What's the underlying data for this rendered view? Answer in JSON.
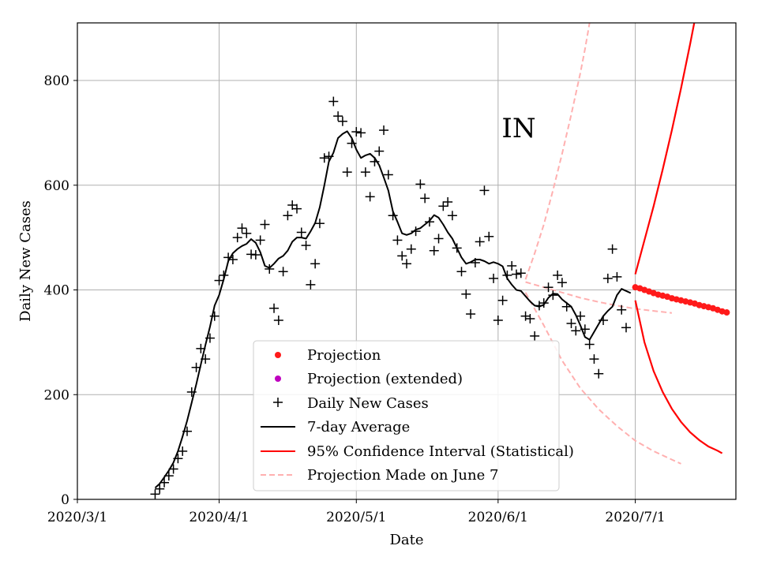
{
  "chart_data": {
    "type": "line",
    "region": "IN",
    "xlabel": "Date",
    "ylabel": "Daily New Cases",
    "ylim": [
      0,
      910
    ],
    "xlim_days": [
      0,
      144
    ],
    "grid": true,
    "legend_position": "lower-center",
    "x_ticks": [
      {
        "day": 0,
        "label": "2020/3/1"
      },
      {
        "day": 31,
        "label": "2020/4/1"
      },
      {
        "day": 61,
        "label": "2020/5/1"
      },
      {
        "day": 92,
        "label": "2020/6/1"
      },
      {
        "day": 122,
        "label": "2020/7/1"
      }
    ],
    "y_ticks": [
      {
        "value": 0,
        "label": "0"
      },
      {
        "value": 200,
        "label": "200"
      },
      {
        "value": 400,
        "label": "400"
      },
      {
        "value": 600,
        "label": "600"
      },
      {
        "value": 800,
        "label": "800"
      }
    ],
    "legend": {
      "projection": "Projection",
      "projection_extended": "Projection (extended)",
      "daily_cases": "Daily New Cases",
      "avg7": "7-day Average",
      "ci": "95% Confidence Interval (Statistical)",
      "june7": "Projection Made on June 7"
    },
    "colors": {
      "projection": "#ff1a1a",
      "projection_extended": "#bf00bf",
      "daily_cases": "#000000",
      "avg7": "#000000",
      "ci": "#ff0000",
      "june7": "#ffb0b0",
      "grid": "#b0b0b0"
    },
    "daily_new_cases": [
      [
        17,
        10
      ],
      [
        18,
        20
      ],
      [
        19,
        32
      ],
      [
        20,
        45
      ],
      [
        21,
        58
      ],
      [
        22,
        78
      ],
      [
        23,
        92
      ],
      [
        24,
        130
      ],
      [
        25,
        205
      ],
      [
        26,
        252
      ],
      [
        27,
        288
      ],
      [
        28,
        268
      ],
      [
        29,
        308
      ],
      [
        30,
        350
      ],
      [
        31,
        418
      ],
      [
        32,
        428
      ],
      [
        33,
        462
      ],
      [
        34,
        458
      ],
      [
        35,
        500
      ],
      [
        36,
        518
      ],
      [
        37,
        508
      ],
      [
        38,
        468
      ],
      [
        39,
        467
      ],
      [
        40,
        495
      ],
      [
        41,
        525
      ],
      [
        42,
        440
      ],
      [
        43,
        365
      ],
      [
        44,
        342
      ],
      [
        45,
        435
      ],
      [
        46,
        542
      ],
      [
        47,
        562
      ],
      [
        48,
        555
      ],
      [
        49,
        510
      ],
      [
        50,
        485
      ],
      [
        51,
        410
      ],
      [
        52,
        450
      ],
      [
        53,
        527
      ],
      [
        54,
        652
      ],
      [
        55,
        655
      ],
      [
        56,
        760
      ],
      [
        57,
        732
      ],
      [
        58,
        722
      ],
      [
        59,
        625
      ],
      [
        60,
        680
      ],
      [
        61,
        702
      ],
      [
        62,
        700
      ],
      [
        63,
        625
      ],
      [
        64,
        578
      ],
      [
        65,
        645
      ],
      [
        66,
        665
      ],
      [
        67,
        705
      ],
      [
        68,
        620
      ],
      [
        69,
        542
      ],
      [
        70,
        495
      ],
      [
        71,
        465
      ],
      [
        72,
        450
      ],
      [
        73,
        478
      ],
      [
        74,
        512
      ],
      [
        75,
        602
      ],
      [
        76,
        575
      ],
      [
        77,
        530
      ],
      [
        78,
        475
      ],
      [
        79,
        498
      ],
      [
        80,
        560
      ],
      [
        81,
        568
      ],
      [
        82,
        542
      ],
      [
        83,
        480
      ],
      [
        84,
        435
      ],
      [
        85,
        392
      ],
      [
        86,
        354
      ],
      [
        87,
        452
      ],
      [
        88,
        492
      ],
      [
        89,
        590
      ],
      [
        90,
        502
      ],
      [
        91,
        422
      ],
      [
        92,
        342
      ],
      [
        93,
        380
      ],
      [
        94,
        428
      ],
      [
        95,
        446
      ],
      [
        96,
        430
      ],
      [
        97,
        432
      ],
      [
        98,
        350
      ],
      [
        99,
        345
      ],
      [
        100,
        312
      ],
      [
        101,
        370
      ],
      [
        102,
        375
      ],
      [
        103,
        405
      ],
      [
        104,
        390
      ],
      [
        105,
        428
      ],
      [
        106,
        414
      ],
      [
        107,
        368
      ],
      [
        108,
        336
      ],
      [
        109,
        322
      ],
      [
        110,
        350
      ],
      [
        111,
        325
      ],
      [
        112,
        296
      ],
      [
        113,
        268
      ],
      [
        114,
        240
      ],
      [
        115,
        342
      ],
      [
        116,
        422
      ],
      [
        117,
        478
      ],
      [
        118,
        425
      ],
      [
        119,
        362
      ],
      [
        120,
        328
      ]
    ],
    "seven_day_average": [
      [
        17,
        22
      ],
      [
        18,
        30
      ],
      [
        19,
        42
      ],
      [
        20,
        55
      ],
      [
        21,
        70
      ],
      [
        22,
        92
      ],
      [
        23,
        120
      ],
      [
        24,
        150
      ],
      [
        25,
        185
      ],
      [
        26,
        220
      ],
      [
        27,
        258
      ],
      [
        28,
        295
      ],
      [
        29,
        330
      ],
      [
        30,
        370
      ],
      [
        31,
        390
      ],
      [
        32,
        420
      ],
      [
        33,
        455
      ],
      [
        34,
        470
      ],
      [
        35,
        478
      ],
      [
        36,
        484
      ],
      [
        37,
        488
      ],
      [
        38,
        497
      ],
      [
        39,
        490
      ],
      [
        40,
        472
      ],
      [
        41,
        446
      ],
      [
        42,
        442
      ],
      [
        43,
        450
      ],
      [
        44,
        460
      ],
      [
        45,
        465
      ],
      [
        46,
        475
      ],
      [
        47,
        492
      ],
      [
        48,
        500
      ],
      [
        49,
        500
      ],
      [
        50,
        498
      ],
      [
        51,
        512
      ],
      [
        52,
        528
      ],
      [
        53,
        558
      ],
      [
        54,
        600
      ],
      [
        55,
        645
      ],
      [
        56,
        662
      ],
      [
        57,
        690
      ],
      [
        58,
        698
      ],
      [
        59,
        703
      ],
      [
        60,
        690
      ],
      [
        61,
        668
      ],
      [
        62,
        652
      ],
      [
        63,
        657
      ],
      [
        64,
        660
      ],
      [
        65,
        652
      ],
      [
        66,
        638
      ],
      [
        67,
        615
      ],
      [
        68,
        590
      ],
      [
        69,
        550
      ],
      [
        70,
        530
      ],
      [
        71,
        508
      ],
      [
        72,
        505
      ],
      [
        73,
        508
      ],
      [
        74,
        515
      ],
      [
        75,
        518
      ],
      [
        76,
        525
      ],
      [
        77,
        532
      ],
      [
        78,
        543
      ],
      [
        79,
        538
      ],
      [
        80,
        525
      ],
      [
        81,
        510
      ],
      [
        82,
        498
      ],
      [
        83,
        480
      ],
      [
        84,
        462
      ],
      [
        85,
        450
      ],
      [
        86,
        453
      ],
      [
        87,
        458
      ],
      [
        88,
        458
      ],
      [
        89,
        455
      ],
      [
        90,
        450
      ],
      [
        91,
        453
      ],
      [
        92,
        450
      ],
      [
        93,
        445
      ],
      [
        94,
        422
      ],
      [
        95,
        410
      ],
      [
        96,
        400
      ],
      [
        97,
        398
      ],
      [
        98,
        388
      ],
      [
        99,
        378
      ],
      [
        100,
        370
      ],
      [
        101,
        368
      ],
      [
        102,
        372
      ],
      [
        103,
        385
      ],
      [
        104,
        393
      ],
      [
        105,
        392
      ],
      [
        106,
        382
      ],
      [
        107,
        375
      ],
      [
        108,
        368
      ],
      [
        109,
        352
      ],
      [
        110,
        332
      ],
      [
        111,
        310
      ],
      [
        112,
        305
      ],
      [
        113,
        320
      ],
      [
        114,
        335
      ],
      [
        115,
        350
      ],
      [
        116,
        360
      ],
      [
        117,
        368
      ],
      [
        118,
        390
      ],
      [
        119,
        402
      ],
      [
        120,
        398
      ],
      [
        121,
        394
      ]
    ],
    "projection": [
      [
        122,
        405
      ],
      [
        123,
        403
      ],
      [
        124,
        400
      ],
      [
        125,
        397
      ],
      [
        126,
        394
      ],
      [
        127,
        391
      ],
      [
        128,
        389
      ],
      [
        129,
        387
      ],
      [
        130,
        384
      ],
      [
        131,
        382
      ],
      [
        132,
        380
      ],
      [
        133,
        378
      ],
      [
        134,
        376
      ],
      [
        135,
        374
      ],
      [
        136,
        371
      ],
      [
        137,
        369
      ],
      [
        138,
        367
      ],
      [
        139,
        365
      ],
      [
        140,
        362
      ],
      [
        141,
        359
      ],
      [
        142,
        357
      ]
    ],
    "ci_upper": [
      [
        122,
        430
      ],
      [
        124,
        495
      ],
      [
        126,
        560
      ],
      [
        128,
        630
      ],
      [
        130,
        705
      ],
      [
        132,
        785
      ],
      [
        134,
        870
      ],
      [
        135,
        915
      ]
    ],
    "ci_lower": [
      [
        122,
        380
      ],
      [
        124,
        300
      ],
      [
        126,
        245
      ],
      [
        128,
        205
      ],
      [
        130,
        173
      ],
      [
        132,
        148
      ],
      [
        134,
        128
      ],
      [
        136,
        113
      ],
      [
        138,
        101
      ],
      [
        140,
        93
      ],
      [
        141,
        88
      ]
    ],
    "june7_upper": [
      [
        98,
        420
      ],
      [
        100,
        470
      ],
      [
        102,
        525
      ],
      [
        104,
        590
      ],
      [
        106,
        660
      ],
      [
        108,
        735
      ],
      [
        110,
        815
      ],
      [
        111,
        860
      ],
      [
        112,
        910
      ]
    ],
    "june7_center": [
      [
        98,
        415
      ],
      [
        102,
        405
      ],
      [
        106,
        395
      ],
      [
        110,
        385
      ],
      [
        114,
        377
      ],
      [
        118,
        370
      ],
      [
        122,
        364
      ],
      [
        126,
        360
      ],
      [
        130,
        356
      ]
    ],
    "june7_lower": [
      [
        98,
        395
      ],
      [
        102,
        332
      ],
      [
        106,
        265
      ],
      [
        110,
        212
      ],
      [
        114,
        172
      ],
      [
        118,
        140
      ],
      [
        122,
        112
      ],
      [
        126,
        92
      ],
      [
        130,
        76
      ],
      [
        132,
        68
      ]
    ]
  }
}
